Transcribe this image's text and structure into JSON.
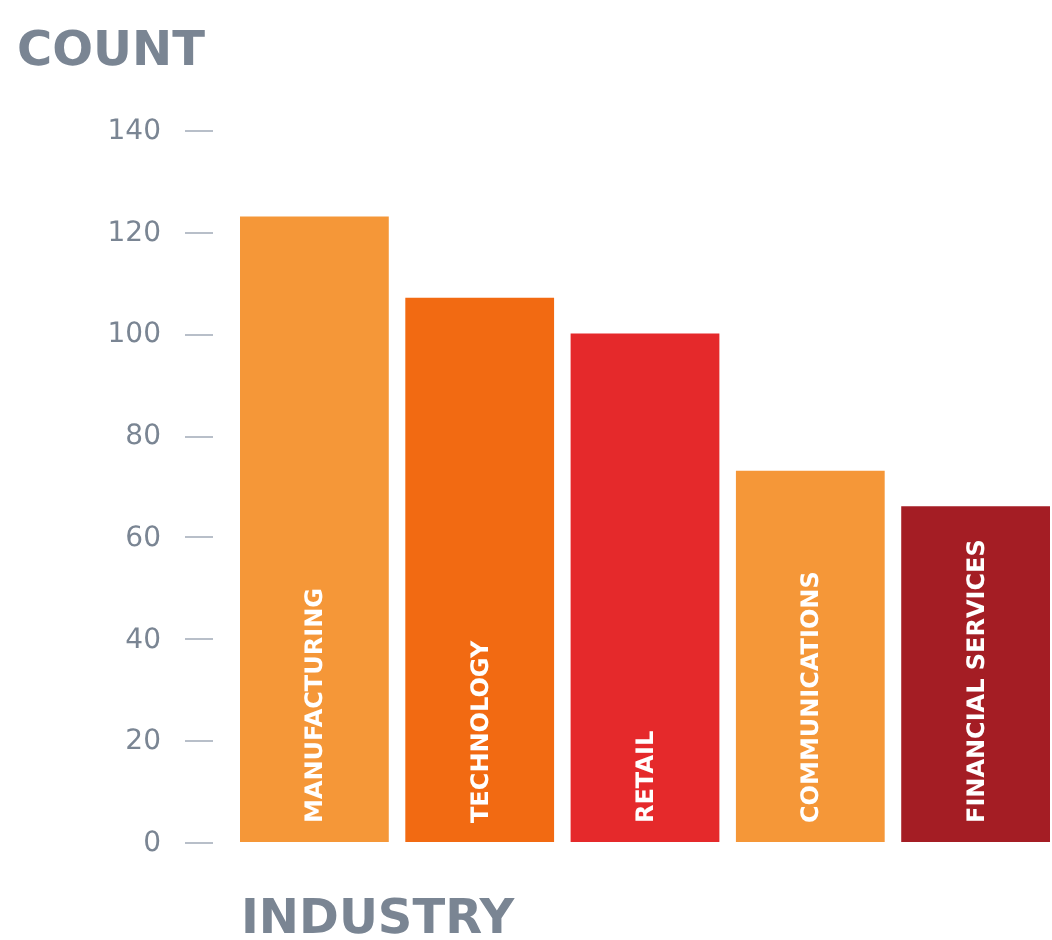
{
  "chart_data": {
    "type": "bar",
    "xlabel": "INDUSTRY",
    "ylabel": "COUNT",
    "categories": [
      "MANUFACTURING",
      "TECHNOLOGY",
      "RETAIL",
      "COMMUNICATIONS",
      "FINANCIAL SERVICES"
    ],
    "values": [
      123,
      107,
      100,
      73,
      66
    ],
    "colors": [
      "#f59738",
      "#f26a12",
      "#e5292b",
      "#f59738",
      "#a41d24"
    ],
    "ylim": [
      0,
      140
    ],
    "yticks": [
      0,
      20,
      40,
      60,
      80,
      100,
      120,
      140
    ],
    "grid": false
  }
}
